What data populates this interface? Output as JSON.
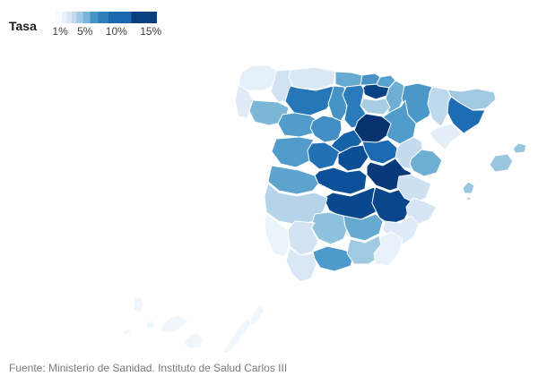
{
  "legend": {
    "title": "Tasa",
    "ticks": [
      {
        "label": "1%",
        "pos_pct": 4.5
      },
      {
        "label": "5%",
        "pos_pct": 29
      },
      {
        "label": "10%",
        "pos_pct": 60
      },
      {
        "label": "15%",
        "pos_pct": 94
      }
    ],
    "gradient_steps": [
      {
        "color": "#f7fbff",
        "to_pct": 6
      },
      {
        "color": "#e9f1fa",
        "to_pct": 11
      },
      {
        "color": "#d8e7f4",
        "to_pct": 16
      },
      {
        "color": "#c1d8ee",
        "to_pct": 21
      },
      {
        "color": "#a3cae5",
        "to_pct": 27
      },
      {
        "color": "#79b5da",
        "to_pct": 34
      },
      {
        "color": "#4694c8",
        "to_pct": 42
      },
      {
        "color": "#2e7ebb",
        "to_pct": 52
      },
      {
        "color": "#1b68af",
        "to_pct": 75
      },
      {
        "color": "#0b3f80",
        "to_pct": 100
      }
    ]
  },
  "footer": {
    "source": "Fuente: Ministerio de Sanidad. Instituto de Salud Carlos III"
  },
  "chart_data": {
    "type": "choropleth-map",
    "region": "Spain, by province",
    "measure": "Tasa",
    "unit": "%",
    "scale": {
      "min": 1,
      "max": 15,
      "palette_stops": [
        [
          1,
          "#f7fbff"
        ],
        [
          3,
          "#d0e1f2"
        ],
        [
          5,
          "#93c4de"
        ],
        [
          7,
          "#4a98c9"
        ],
        [
          9,
          "#2171b5"
        ],
        [
          11,
          "#0b539d"
        ],
        [
          13,
          "#083d7e"
        ],
        [
          15,
          "#08306b"
        ]
      ]
    },
    "provinces": [
      {
        "name": "A Coruña",
        "value": 1.9
      },
      {
        "name": "Lugo",
        "value": 3.0
      },
      {
        "name": "Pontevedra",
        "value": 2.2
      },
      {
        "name": "Ourense",
        "value": 5.6
      },
      {
        "name": "Asturias",
        "value": 2.5
      },
      {
        "name": "Cantabria",
        "value": 6.2
      },
      {
        "name": "Bizkaia",
        "value": 7.2
      },
      {
        "name": "Gipuzkoa",
        "value": 6.6
      },
      {
        "name": "Álava",
        "value": 12.5
      },
      {
        "name": "Navarra",
        "value": 6.0
      },
      {
        "name": "La Rioja",
        "value": 4.3
      },
      {
        "name": "Huesca",
        "value": 7.0
      },
      {
        "name": "Zaragoza",
        "value": 6.8
      },
      {
        "name": "Teruel",
        "value": 3.4
      },
      {
        "name": "Lleida",
        "value": 3.6
      },
      {
        "name": "Girona",
        "value": 4.6
      },
      {
        "name": "Barcelona",
        "value": 9.3
      },
      {
        "name": "Tarragona",
        "value": 2.0
      },
      {
        "name": "León",
        "value": 8.7
      },
      {
        "name": "Palencia",
        "value": 7.3
      },
      {
        "name": "Burgos",
        "value": 8.5
      },
      {
        "name": "Zamora",
        "value": 6.8
      },
      {
        "name": "Valladolid",
        "value": 7.5
      },
      {
        "name": "Soria",
        "value": 14.5
      },
      {
        "name": "Segovia",
        "value": 10.0
      },
      {
        "name": "Ávila",
        "value": 9.0
      },
      {
        "name": "Salamanca",
        "value": 6.8
      },
      {
        "name": "Madrid",
        "value": 11.5
      },
      {
        "name": "Guadalajara",
        "value": 9.5
      },
      {
        "name": "Cuenca",
        "value": 13.5
      },
      {
        "name": "Toledo",
        "value": 11.3
      },
      {
        "name": "Ciudad Real",
        "value": 12.0
      },
      {
        "name": "Albacete",
        "value": 12.3
      },
      {
        "name": "Cáceres",
        "value": 6.5
      },
      {
        "name": "Badajoz",
        "value": 3.9
      },
      {
        "name": "Castellón",
        "value": 6.0
      },
      {
        "name": "Valencia",
        "value": 3.1
      },
      {
        "name": "Alicante",
        "value": 2.7
      },
      {
        "name": "Murcia",
        "value": 2.3
      },
      {
        "name": "Huelva",
        "value": 1.6
      },
      {
        "name": "Sevilla",
        "value": 2.9
      },
      {
        "name": "Cádiz",
        "value": 2.5
      },
      {
        "name": "Córdoba",
        "value": 5.1
      },
      {
        "name": "Jaén",
        "value": 6.2
      },
      {
        "name": "Granada",
        "value": 4.6
      },
      {
        "name": "Málaga",
        "value": 6.9
      },
      {
        "name": "Almería",
        "value": 1.7
      },
      {
        "name": "Illes Balears",
        "value": 4.8
      },
      {
        "name": "Santa Cruz de Tenerife",
        "value": 1.4
      },
      {
        "name": "Las Palmas",
        "value": 1.4
      }
    ]
  }
}
